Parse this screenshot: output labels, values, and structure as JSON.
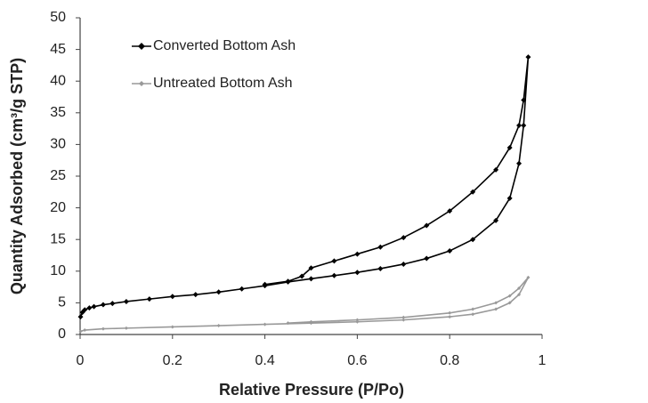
{
  "chart_data": {
    "type": "line",
    "xlabel": "Relative Pressure (P/Po)",
    "ylabel": "Quantity Adsorbed (cm³/g STP)",
    "xlim": [
      0,
      1
    ],
    "xticks": [
      0,
      0.2,
      0.4,
      0.6,
      0.8,
      1
    ],
    "ylim": [
      0,
      50
    ],
    "yticks": [
      0,
      5,
      10,
      15,
      20,
      25,
      30,
      35,
      40,
      45,
      50
    ],
    "grid": false,
    "legend": "upper left",
    "series": [
      {
        "name": "Converted Bottom Ash",
        "color": "#000000",
        "marker_size": 3,
        "x": [
          0.001,
          0.005,
          0.01,
          0.02,
          0.03,
          0.05,
          0.07,
          0.1,
          0.15,
          0.2,
          0.25,
          0.3,
          0.35,
          0.4,
          0.45,
          0.5,
          0.55,
          0.6,
          0.65,
          0.7,
          0.75,
          0.8,
          0.85,
          0.9,
          0.93,
          0.95,
          0.96,
          0.97,
          0.96,
          0.95,
          0.93,
          0.9,
          0.85,
          0.8,
          0.75,
          0.7,
          0.65,
          0.6,
          0.55,
          0.5,
          0.48,
          0.45,
          0.4
        ],
        "values": [
          2.8,
          3.5,
          3.9,
          4.2,
          4.4,
          4.7,
          4.9,
          5.2,
          5.6,
          6.0,
          6.3,
          6.7,
          7.2,
          7.7,
          8.3,
          8.8,
          9.3,
          9.8,
          10.4,
          11.1,
          12.0,
          13.2,
          15.0,
          18.0,
          21.5,
          27.0,
          33.0,
          43.8,
          37.0,
          33.0,
          29.5,
          26.0,
          22.5,
          19.5,
          17.2,
          15.3,
          13.8,
          12.7,
          11.6,
          10.5,
          9.2,
          8.4,
          7.9
        ]
      },
      {
        "name": "Untreated Bottom Ash",
        "color": "#999999",
        "marker_size": 2,
        "x": [
          0.001,
          0.01,
          0.05,
          0.1,
          0.2,
          0.3,
          0.4,
          0.5,
          0.6,
          0.7,
          0.8,
          0.85,
          0.9,
          0.93,
          0.95,
          0.97,
          0.95,
          0.93,
          0.9,
          0.85,
          0.8,
          0.7,
          0.6,
          0.5,
          0.45
        ],
        "values": [
          0.5,
          0.7,
          0.9,
          1.0,
          1.2,
          1.4,
          1.6,
          1.8,
          2.0,
          2.3,
          2.8,
          3.2,
          4.0,
          5.0,
          6.3,
          9.0,
          7.3,
          6.1,
          5.0,
          4.0,
          3.4,
          2.7,
          2.3,
          2.0,
          1.8
        ]
      }
    ]
  }
}
